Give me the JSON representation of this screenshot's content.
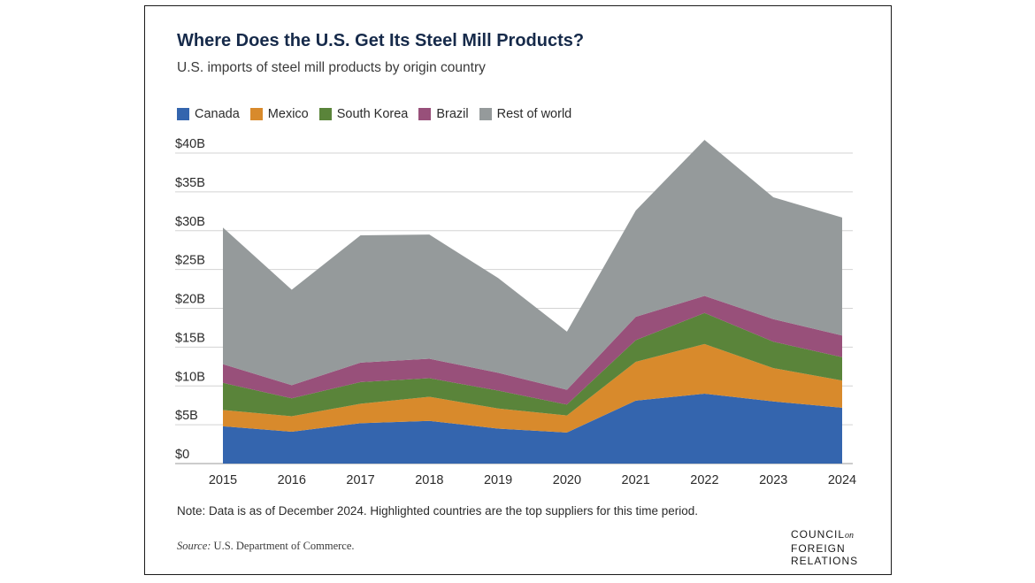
{
  "title": "Where Does the U.S. Get Its Steel Mill Products?",
  "subtitle": "U.S. imports of steel mill products by origin country",
  "note": "Note: Data is as of December 2024. Highlighted countries are the top suppliers for this time period.",
  "source": {
    "label": "Source:",
    "text": "U.S. Department of Commerce."
  },
  "logo": {
    "line1": "COUNCIL",
    "line1_small": "on",
    "line2": "FOREIGN",
    "line3": "RELATIONS"
  },
  "colors": {
    "Canada": "#3465ae",
    "Mexico": "#d88a2c",
    "South Korea": "#5a843a",
    "Brazil": "#98507a",
    "Rest of world": "#959a9b",
    "grid": "#d3d3d3",
    "text": "#2b2b2b"
  },
  "chart_data": {
    "type": "area",
    "stacked": true,
    "title": "Where Does the U.S. Get Its Steel Mill Products?",
    "subtitle": "U.S. imports of steel mill products by origin country",
    "x": [
      "2015",
      "2016",
      "2017",
      "2018",
      "2019",
      "2020",
      "2021",
      "2022",
      "2023",
      "2024"
    ],
    "y_ticks": [
      "$0",
      "$5B",
      "$10B",
      "$15B",
      "$20B",
      "$25B",
      "$30B",
      "$35B",
      "$40B"
    ],
    "ylim": [
      0,
      40
    ],
    "grid": true,
    "legend_position": "top-left",
    "series": [
      {
        "name": "Canada",
        "values": [
          4.8,
          4.1,
          5.2,
          5.5,
          4.5,
          4.0,
          8.1,
          9.0,
          8.0,
          7.2
        ]
      },
      {
        "name": "Mexico",
        "values": [
          2.1,
          2.0,
          2.5,
          3.1,
          2.6,
          2.2,
          5.0,
          6.4,
          4.3,
          3.5
        ]
      },
      {
        "name": "South Korea",
        "values": [
          3.5,
          2.3,
          2.8,
          2.4,
          2.3,
          1.4,
          2.8,
          4.0,
          3.4,
          3.0
        ]
      },
      {
        "name": "Brazil",
        "values": [
          2.4,
          1.7,
          2.5,
          2.5,
          2.3,
          1.9,
          3.0,
          2.2,
          2.9,
          2.8
        ]
      },
      {
        "name": "Rest of world",
        "values": [
          17.6,
          12.3,
          16.4,
          16.0,
          12.2,
          7.5,
          13.7,
          20.1,
          15.7,
          15.2
        ]
      }
    ]
  }
}
